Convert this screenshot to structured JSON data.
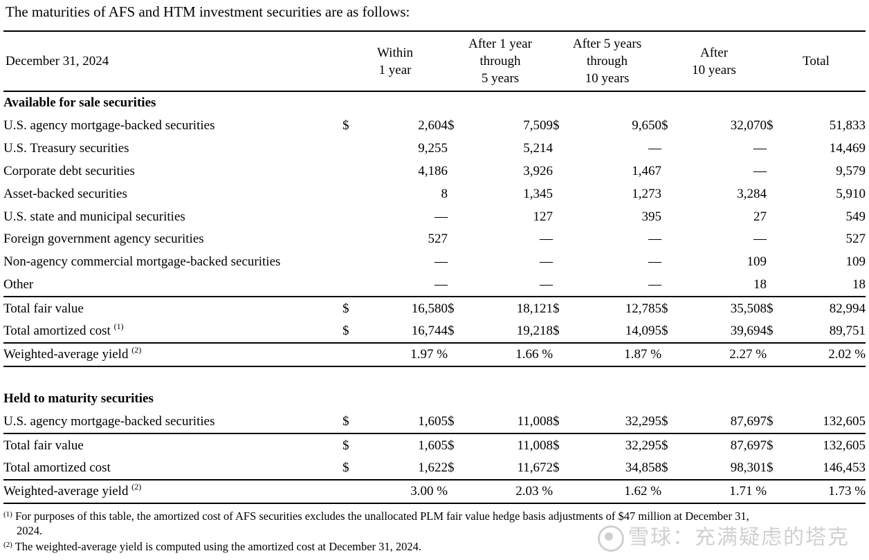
{
  "intro": "The maturities of AFS and HTM investment securities are as follows:",
  "header": {
    "date": "December 31, 2024",
    "col1": [
      "Within",
      "1 year"
    ],
    "col2": [
      "After 1 year",
      "through",
      "5 years"
    ],
    "col3": [
      "After 5 years",
      "through",
      "10 years"
    ],
    "col4": [
      "After",
      "10 years"
    ],
    "col5": "Total"
  },
  "currency": "$",
  "afs": {
    "title": "Available for sale securities",
    "rows": [
      {
        "label": "U.S. agency mortgage-backed securities",
        "v": [
          "2,604",
          "7,509",
          "9,650",
          "32,070",
          "51,833"
        ]
      },
      {
        "label": "U.S. Treasury securities",
        "v": [
          "9,255",
          "5,214",
          "—",
          "—",
          "14,469"
        ]
      },
      {
        "label": "Corporate debt securities",
        "v": [
          "4,186",
          "3,926",
          "1,467",
          "—",
          "9,579"
        ]
      },
      {
        "label": "Asset-backed securities",
        "v": [
          "8",
          "1,345",
          "1,273",
          "3,284",
          "5,910"
        ]
      },
      {
        "label": "U.S. state and municipal securities",
        "v": [
          "—",
          "127",
          "395",
          "27",
          "549"
        ]
      },
      {
        "label": "Foreign government agency securities",
        "v": [
          "527",
          "—",
          "—",
          "—",
          "527"
        ]
      },
      {
        "label": "Non-agency commercial mortgage-backed securities",
        "v": [
          "—",
          "—",
          "—",
          "109",
          "109"
        ]
      },
      {
        "label": "Other",
        "v": [
          "—",
          "—",
          "—",
          "18",
          "18"
        ]
      }
    ],
    "total_fair_value": {
      "label": "Total fair value",
      "v": [
        "16,580",
        "18,121",
        "12,785",
        "35,508",
        "82,994"
      ]
    },
    "total_amortized_cost": {
      "label": "Total amortized cost",
      "note": "(1)",
      "v": [
        "16,744",
        "19,218",
        "14,095",
        "39,694",
        "89,751"
      ]
    },
    "yield": {
      "label": "Weighted-average yield",
      "note": "(2)",
      "v": [
        "1.97 %",
        "1.66 %",
        "1.87 %",
        "2.27 %",
        "2.02 %"
      ]
    }
  },
  "htm": {
    "title": "Held to maturity securities",
    "rows": [
      {
        "label": "U.S. agency mortgage-backed securities",
        "v": [
          "1,605",
          "11,008",
          "32,295",
          "87,697",
          "132,605"
        ]
      }
    ],
    "total_fair_value": {
      "label": "Total fair value",
      "v": [
        "1,605",
        "11,008",
        "32,295",
        "87,697",
        "132,605"
      ]
    },
    "total_amortized_cost": {
      "label": "Total amortized cost",
      "v": [
        "1,622",
        "11,672",
        "34,858",
        "98,301",
        "146,453"
      ]
    },
    "yield": {
      "label": "Weighted-average yield",
      "note": "(2)",
      "v": [
        "3.00 %",
        "2.03 %",
        "1.62 %",
        "1.71 %",
        "1.73 %"
      ]
    }
  },
  "footnotes": {
    "n1": {
      "mark": "(1)",
      "text": "For purposes of this table, the amortized cost of AFS securities excludes the unallocated PLM fair value hedge basis adjustments of $47 million at December 31,",
      "cont": "2024."
    },
    "n2": {
      "mark": "(2)",
      "text": "The weighted-average yield is computed using the amortized cost at December 31, 2024."
    }
  },
  "watermark": "雪球：充满疑虑的塔克"
}
